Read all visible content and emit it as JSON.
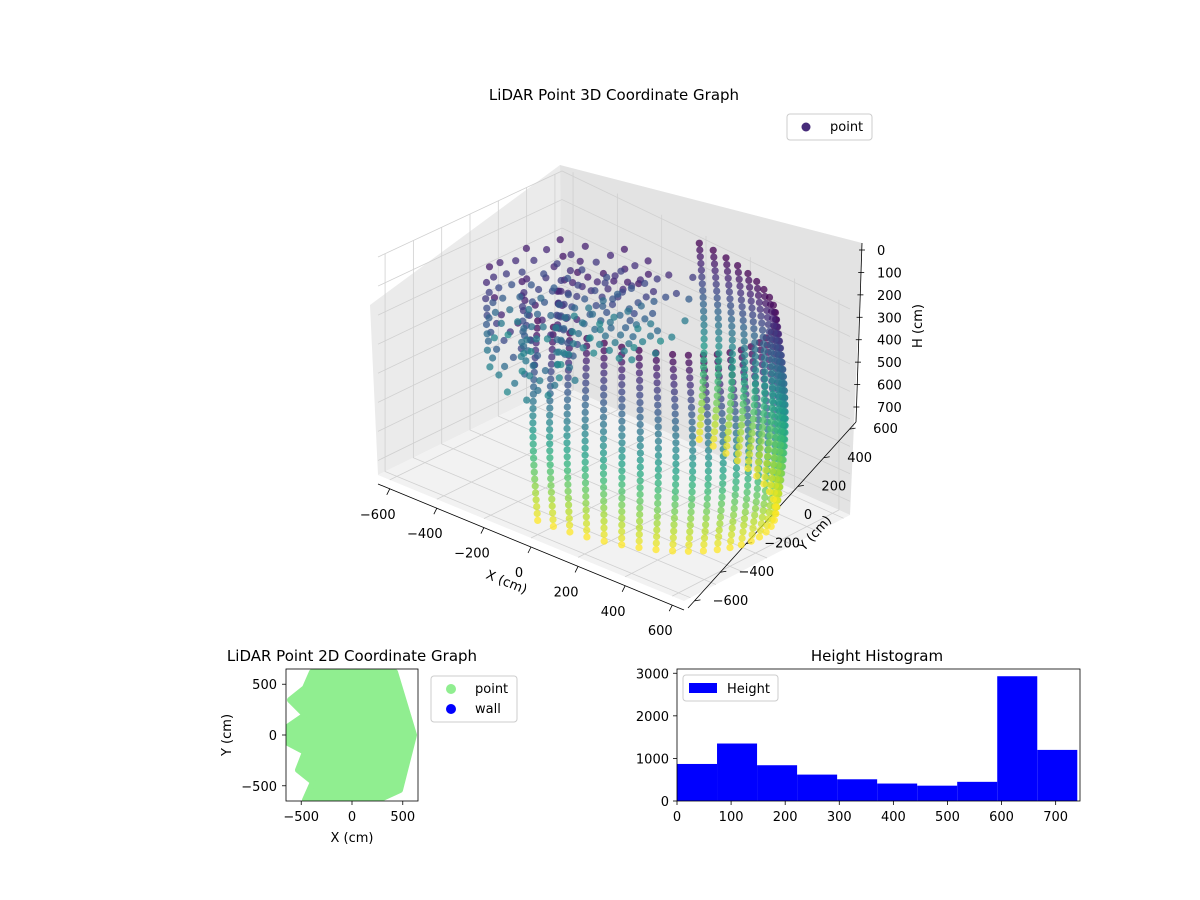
{
  "figure": {
    "background": "#ffffff"
  },
  "chart_data": [
    {
      "type": "scatter",
      "projection": "3d",
      "title": "LiDAR Point 3D Coordinate Graph",
      "xlabel": "X (cm)",
      "ylabel": "Y (cm)",
      "zlabel": "H (cm)",
      "xlim": [
        -650,
        650
      ],
      "ylim": [
        -650,
        650
      ],
      "zlim": [
        0,
        750
      ],
      "z_inverted": true,
      "x_ticks": [
        "−600",
        "−400",
        "−200",
        "0",
        "200",
        "400",
        "600"
      ],
      "y_ticks": [
        "−600",
        "−400",
        "−200",
        "0",
        "200",
        "400",
        "600"
      ],
      "z_ticks": [
        "0",
        "100",
        "200",
        "300",
        "400",
        "500",
        "600",
        "700"
      ],
      "grid": true,
      "legend": {
        "placement": "top-right",
        "entries": [
          {
            "label": "point",
            "color": "#472c7a"
          }
        ]
      },
      "colormap": "viridis",
      "color_by": "height",
      "series": [
        {
          "name": "point",
          "description": "vertical scan lines on a cylinder-like wall, radius about 600 cm, from about 0 to 700 cm height, colored by height",
          "wall_radius": 600,
          "arc_degrees": [
            -90,
            90
          ],
          "height_range": [
            0,
            700
          ],
          "scan_lines": 30
        }
      ]
    },
    {
      "type": "scatter",
      "title": "LiDAR Point 2D Coordinate Graph",
      "xlabel": "X (cm)",
      "ylabel": "Y (cm)",
      "xlim": [
        -650,
        650
      ],
      "ylim": [
        -650,
        650
      ],
      "x_ticks": [
        "−500",
        "0",
        "500"
      ],
      "y_ticks": [
        "−500",
        "0",
        "500"
      ],
      "grid": false,
      "legend": {
        "placement": "outside-right",
        "entries": [
          {
            "label": "point",
            "color": "#90ee90"
          },
          {
            "label": "wall",
            "color": "#0000ff"
          }
        ]
      },
      "series": [
        {
          "name": "point",
          "color": "#90ee90",
          "description": "filled half-disc, radius about 600, x from about −600 to 600"
        },
        {
          "name": "wall",
          "color": "#0000ff",
          "values": []
        }
      ]
    },
    {
      "type": "bar",
      "subtype": "histogram",
      "title": "Height Histogram",
      "xlim": [
        0,
        745
      ],
      "ylim": [
        0,
        3100
      ],
      "x_ticks": [
        "0",
        "100",
        "200",
        "300",
        "400",
        "500",
        "600",
        "700"
      ],
      "y_ticks": [
        "0",
        "1000",
        "2000",
        "3000"
      ],
      "grid": false,
      "color": "#0000ff",
      "legend": {
        "placement": "top-left",
        "entries": [
          {
            "label": "Height",
            "color": "#0000ff"
          }
        ]
      },
      "bin_edges": [
        0,
        74,
        148,
        222,
        296,
        370,
        444,
        518,
        592,
        666,
        740
      ],
      "values": [
        870,
        1350,
        840,
        620,
        510,
        410,
        360,
        450,
        2930,
        1200
      ]
    }
  ]
}
